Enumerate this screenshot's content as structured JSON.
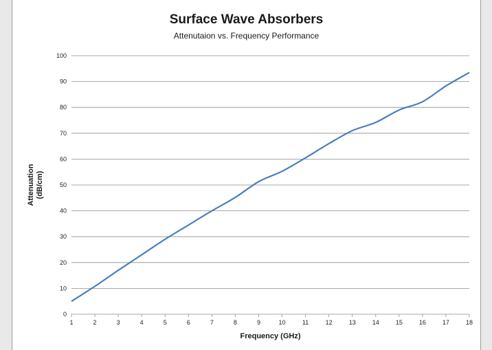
{
  "chart_data": {
    "type": "line",
    "title": "Surface Wave Absorbers",
    "subtitle": "Attenutaion vs. Frequency Performance",
    "xlabel": "Frequency (GHz)",
    "ylabel_lines": [
      "Attenuation",
      "(dB/cm)"
    ],
    "xlim": [
      1,
      18
    ],
    "ylim": [
      0,
      100
    ],
    "x_ticks": [
      1,
      2,
      3,
      4,
      5,
      6,
      7,
      8,
      9,
      10,
      11,
      12,
      13,
      14,
      15,
      16,
      17,
      18
    ],
    "y_ticks": [
      0,
      10,
      20,
      30,
      40,
      50,
      60,
      70,
      80,
      90,
      100
    ],
    "grid": "horizontal",
    "legend": "none",
    "series": [
      {
        "color": "#4a7ebb",
        "x": [
          1,
          2,
          3,
          4,
          5,
          6,
          7,
          8,
          9,
          10,
          11,
          12,
          13,
          14,
          15,
          16,
          17,
          18
        ],
        "y": [
          5,
          10.8,
          17,
          23,
          29,
          34.5,
          40,
          45.2,
          51.3,
          55.3,
          60.5,
          66,
          71,
          74.2,
          79,
          82.2,
          88.3,
          93.5
        ]
      }
    ]
  }
}
